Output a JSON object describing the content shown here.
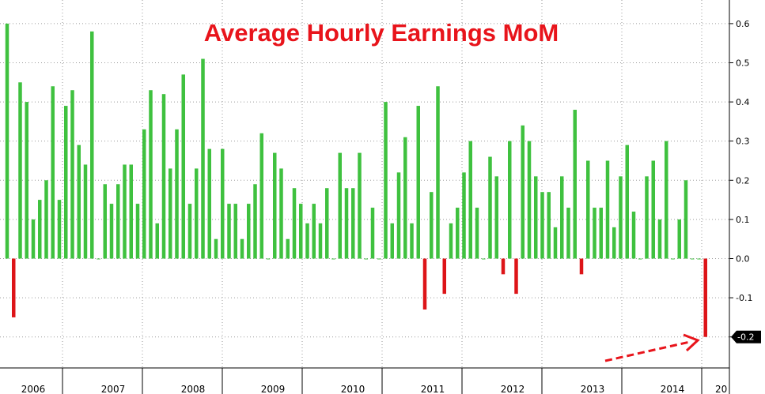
{
  "chart_data": {
    "type": "bar",
    "title": "Average Hourly Earnings MoM",
    "xlabel": "",
    "ylabel": "",
    "ylim": [
      -0.26,
      0.62
    ],
    "yticks": [
      "0.6",
      "0.5",
      "0.4",
      "0.3",
      "0.2",
      "0.1",
      "0.0",
      "-0.1"
    ],
    "year_labels": [
      "2006",
      "2007",
      "2008",
      "2009",
      "2010",
      "2011",
      "2012",
      "2013",
      "2014",
      "20"
    ],
    "last_value_label": "-0.2",
    "grid": true,
    "colors": {
      "positive": "#3fc13f",
      "negative": "#dd1418",
      "title": "#e8141b",
      "annotation_arrow": "#e8141b"
    },
    "values": [
      0.6,
      -0.15,
      0.45,
      0.4,
      0.1,
      0.15,
      0.2,
      0.44,
      0.15,
      0.39,
      0.43,
      0.29,
      0.24,
      0.58,
      0.0,
      0.19,
      0.14,
      0.19,
      0.24,
      0.24,
      0.14,
      0.33,
      0.43,
      0.09,
      0.42,
      0.23,
      0.33,
      0.47,
      0.14,
      0.23,
      0.51,
      0.28,
      0.05,
      0.28,
      0.14,
      0.14,
      0.05,
      0.14,
      0.19,
      0.32,
      0.0,
      0.27,
      0.23,
      0.05,
      0.18,
      0.14,
      0.09,
      0.14,
      0.09,
      0.18,
      0.0,
      0.27,
      0.18,
      0.18,
      0.27,
      0.0,
      0.13,
      0.0,
      0.4,
      0.09,
      0.22,
      0.31,
      0.09,
      0.39,
      -0.13,
      0.17,
      0.44,
      -0.09,
      0.09,
      0.13,
      0.22,
      0.3,
      0.13,
      0.0,
      0.26,
      0.21,
      -0.04,
      0.3,
      -0.09,
      0.34,
      0.3,
      0.21,
      0.17,
      0.17,
      0.08,
      0.21,
      0.13,
      0.38,
      -0.04,
      0.25,
      0.13,
      0.13,
      0.25,
      0.08,
      0.21,
      0.29,
      0.12,
      0.0,
      0.21,
      0.25,
      0.1,
      0.3,
      0.0,
      0.1,
      0.2,
      0.0,
      0.0,
      -0.2
    ]
  }
}
